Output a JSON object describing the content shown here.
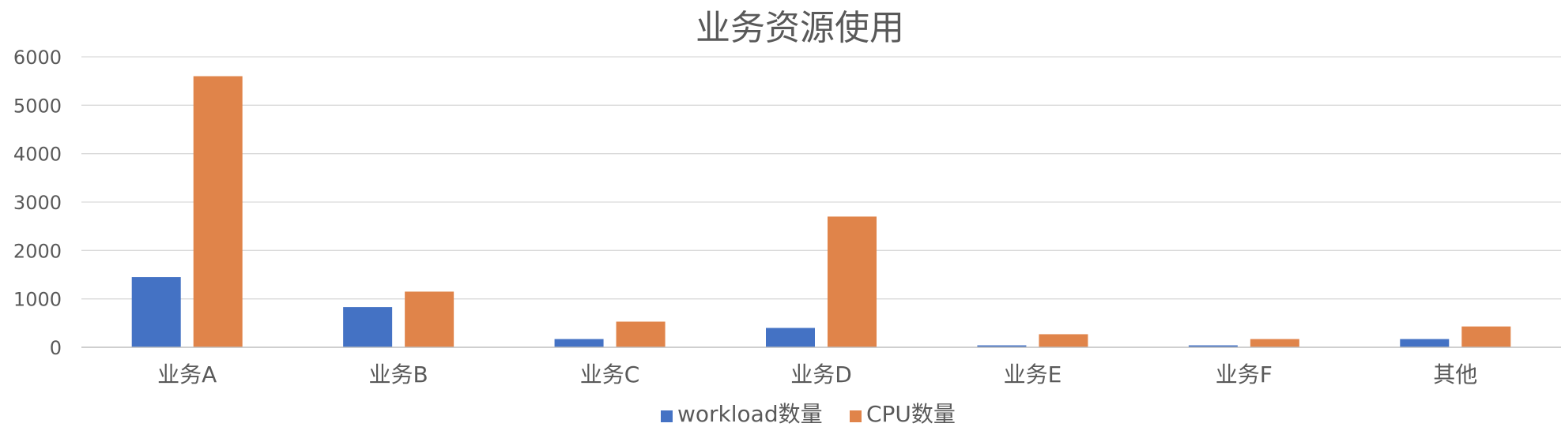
{
  "chart_data": {
    "type": "bar",
    "title": "业务资源使用",
    "categories": [
      "业务A",
      "业务B",
      "业务C",
      "业务D",
      "业务E",
      "业务F",
      "其他"
    ],
    "series": [
      {
        "name": "workload数量",
        "color": "#4472C4",
        "values": [
          1450,
          830,
          170,
          400,
          40,
          40,
          170
        ]
      },
      {
        "name": "CPU数量",
        "color": "#E0844A",
        "values": [
          5600,
          1150,
          530,
          2700,
          270,
          170,
          430
        ]
      }
    ],
    "y_ticks": [
      "0",
      "1000",
      "2000",
      "3000",
      "4000",
      "5000",
      "6000"
    ],
    "ylim": [
      0,
      6000
    ],
    "xlabel": "",
    "ylabel": "",
    "grid": true,
    "legend_position": "bottom"
  }
}
